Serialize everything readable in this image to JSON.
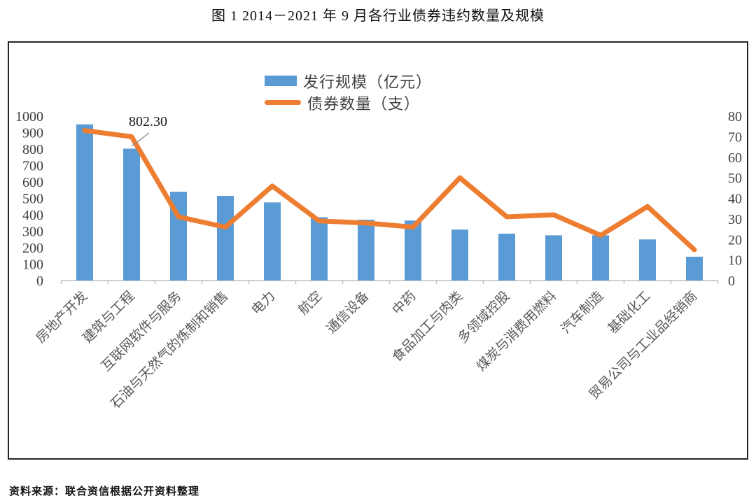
{
  "title": "图 1  2014－2021 年 9 月各行业债券违约数量及规模",
  "source": "资料来源：联合资信根据公开资料整理",
  "annotation": {
    "text": "802.30",
    "category_index": 1,
    "series": "发行规模（亿元）"
  },
  "legend": [
    {
      "label": "发行规模（亿元）",
      "type": "bar",
      "color": "#5B9BD5"
    },
    {
      "label": "债券数量（支）",
      "type": "line",
      "color": "#ED7D31"
    }
  ],
  "left_axis": {
    "ticks": [
      1000,
      900,
      800,
      700,
      600,
      500,
      400,
      300,
      200,
      100,
      0
    ]
  },
  "right_axis": {
    "ticks": [
      80,
      70,
      60,
      50,
      40,
      30,
      20,
      10,
      0
    ]
  },
  "colors": {
    "bar": "#5B9BD5",
    "line": "#ED7D31",
    "axis_text": "#404040",
    "category_text": "#595959",
    "baseline": "#BFBFBF",
    "box_border": "#262626",
    "leader_line": "#8c8c8c"
  },
  "chart_data": {
    "type": "bar+line combo",
    "title": "图 1  2014－2021 年 9 月各行业债券违约数量及规模",
    "categories": [
      "房地产开发",
      "建筑与工程",
      "互联网软件与服务",
      "石油与天然气的炼制和销售",
      "电力",
      "航空",
      "通信设备",
      "中药",
      "食品加工与肉类",
      "多领域控股",
      "煤炭与消费用燃料",
      "汽车制造",
      "基础化工",
      "贸易公司与工业品经销商"
    ],
    "series": [
      {
        "name": "发行规模（亿元）",
        "type": "bar",
        "axis": "left",
        "values": [
          950,
          802.3,
          540,
          515,
          475,
          385,
          370,
          365,
          310,
          285,
          275,
          275,
          250,
          145
        ]
      },
      {
        "name": "债券数量（支）",
        "type": "line",
        "axis": "right",
        "values": [
          73,
          70,
          31,
          26,
          46,
          29,
          28,
          26,
          50,
          31,
          32,
          22,
          36,
          15
        ]
      }
    ],
    "left_ylim": [
      0,
      1000
    ],
    "right_ylim": [
      0,
      80
    ],
    "grid": false,
    "legend_position": "top-center"
  }
}
